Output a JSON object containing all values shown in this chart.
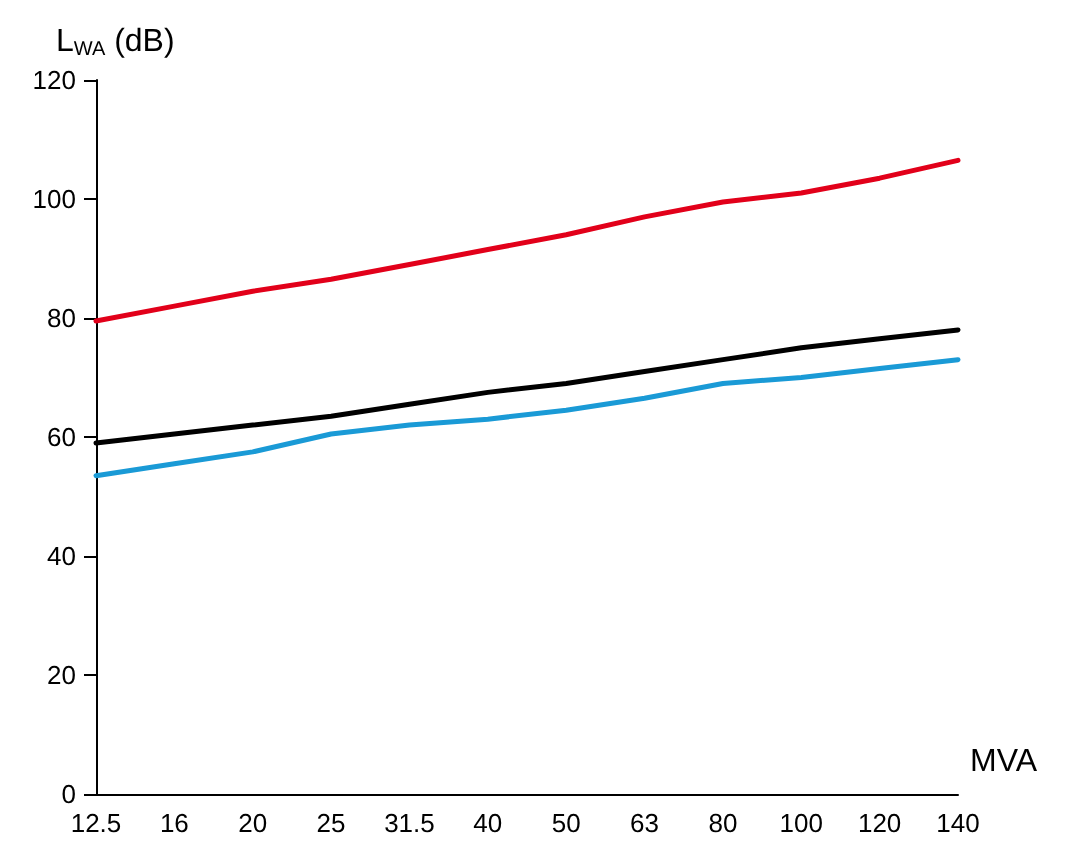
{
  "chart_data": {
    "type": "line",
    "xlabel": "MVA",
    "ylabel": "L$_{WA}$ (dB)",
    "categories": [
      "12.5",
      "16",
      "20",
      "25",
      "31.5",
      "40",
      "50",
      "63",
      "80",
      "100",
      "120",
      "140"
    ],
    "series": [
      {
        "color": "#e2001a",
        "values": [
          79.5,
          82,
          84.5,
          86.5,
          89,
          91.5,
          94,
          97,
          99.5,
          101,
          103.5,
          106.5
        ]
      },
      {
        "color": "#000000",
        "values": [
          59,
          60.5,
          62,
          63.5,
          65.5,
          67.5,
          69,
          71,
          73,
          75,
          76.5,
          78
        ]
      },
      {
        "color": "#1a9ad6",
        "values": [
          53.5,
          55.5,
          57.5,
          60.5,
          62,
          63,
          64.5,
          66.5,
          69,
          70,
          71.5,
          73
        ]
      }
    ],
    "ylim": [
      0,
      120
    ],
    "yticks": [
      0,
      20,
      40,
      60,
      80,
      100,
      120
    ],
    "marker": "none",
    "line_style": "solid"
  }
}
